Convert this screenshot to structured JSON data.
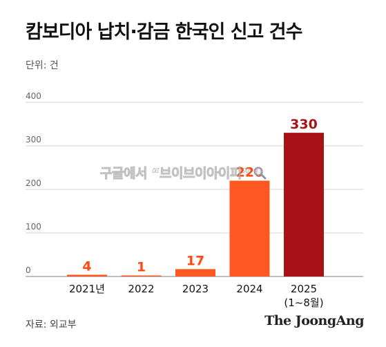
{
  "chart_data": {
    "type": "bar",
    "title": "캄보디아 납치·감금 한국인 신고 건수",
    "unit_label": "단위: 건",
    "categories": [
      "2021년",
      "2022",
      "2023",
      "2024",
      "2025"
    ],
    "category_sublabels": [
      "",
      "",
      "",
      "",
      "(1~8월)"
    ],
    "values": [
      4,
      1,
      17,
      220,
      330
    ],
    "data_labels": [
      "4",
      "1",
      "17",
      "220",
      "330"
    ],
    "ylim": [
      0,
      400
    ],
    "yticks": [
      0,
      100,
      200,
      300,
      400
    ],
    "grid": true,
    "colors": {
      "bar": "#ff5722",
      "bar_highlight": "#a81217",
      "label": "#ff4a12",
      "label_highlight": "#a81217"
    },
    "highlight_index": 4,
    "source": "자료: 외교부",
    "brand": "The JoongAng"
  },
  "watermark": "구글에서 “브이브이아이피”"
}
